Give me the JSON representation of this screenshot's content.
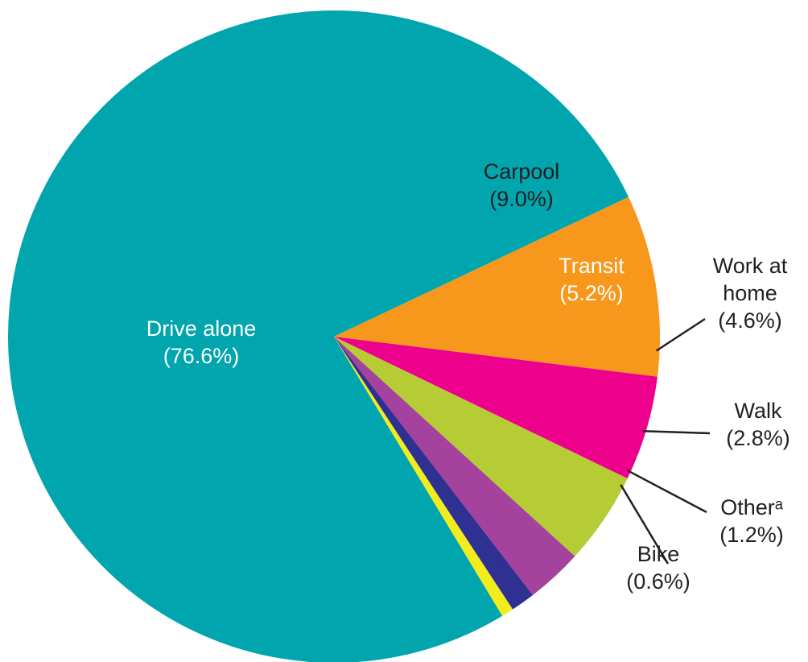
{
  "chart_data": {
    "type": "pie",
    "categories": [
      "Drive alone",
      "Carpool",
      "Transit",
      "Work at home",
      "Walk",
      "Otherᵃ",
      "Bike"
    ],
    "values": [
      76.6,
      9.0,
      5.2,
      4.6,
      2.8,
      1.2,
      0.6
    ],
    "value_labels": [
      "(76.6%)",
      "(9.0%)",
      "(5.2%)",
      "(4.6%)",
      "(2.8%)",
      "(1.2%)",
      "(0.6%)"
    ],
    "label_lines": [
      [
        "Drive alone",
        "(76.6%)"
      ],
      [
        "Carpool",
        "(9.0%)"
      ],
      [
        "Transit",
        "(5.2%)"
      ],
      [
        "Work at",
        "home",
        "(4.6%)"
      ],
      [
        "Walk",
        "(2.8%)"
      ],
      [
        "Otherᵃ",
        "(1.2%)"
      ],
      [
        "Bike",
        "(0.6%)"
      ]
    ],
    "colors": [
      "#00A5AE",
      "#F7981D",
      "#EC008C",
      "#B5CC34",
      "#A4429E",
      "#2E3192",
      "#F2EC1C"
    ],
    "label_colors": [
      "#ffffff",
      "#231F20",
      "#ffffff",
      "#231F20",
      "#231F20",
      "#231F20",
      "#231F20"
    ],
    "label_placement": [
      "inside",
      "inside",
      "inside",
      "outside-callout",
      "outside-callout",
      "outside-callout",
      "outside-callout"
    ],
    "title": "",
    "legend": "none"
  }
}
